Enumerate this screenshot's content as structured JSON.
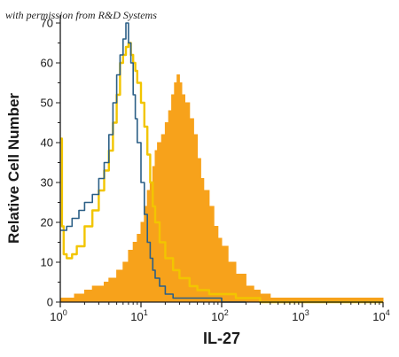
{
  "credit": "with permission from R&D Systems",
  "colors": {
    "filled_series": "#F7A21B",
    "yellow_series": "#F2C500",
    "blue_series": "#2B5F86",
    "axis": "#1a1a1a"
  },
  "chart_data": {
    "type": "area",
    "xlabel": "IL-27",
    "ylabel": "Relative Cell Number",
    "xscale": "log",
    "xlim": [
      1,
      10000
    ],
    "ylim": [
      0,
      72
    ],
    "yticks": [
      0,
      10,
      20,
      30,
      40,
      50,
      60,
      70
    ],
    "xticks": [
      {
        "base": "10",
        "exp": "0",
        "value": 1
      },
      {
        "base": "10",
        "exp": "1",
        "value": 10
      },
      {
        "base": "10",
        "exp": "2",
        "value": 100
      },
      {
        "base": "10",
        "exp": "3",
        "value": 1000
      },
      {
        "base": "10",
        "exp": "4",
        "value": 10000
      }
    ],
    "grid": false,
    "legend": "none",
    "series": [
      {
        "style": "filled",
        "color": "#F7A21B",
        "x": [
          1.0,
          1.2,
          1.5,
          2.0,
          2.5,
          3.0,
          3.5,
          4.0,
          5.0,
          6.0,
          7.0,
          8.0,
          9.0,
          10.0,
          11.0,
          12.0,
          13.0,
          14.0,
          15.0,
          16.0,
          18.0,
          20.0,
          22.0,
          24.0,
          26.0,
          28.0,
          30.0,
          32.0,
          35.0,
          40.0,
          45.0,
          50.0,
          55.0,
          60.0,
          70.0,
          80.0,
          90.0,
          100.0,
          120.0,
          150.0,
          200.0,
          250.0,
          300.0,
          400.0,
          500.0,
          700.0,
          1000.0,
          2000.0,
          5000.0,
          10000.0
        ],
        "y": [
          1,
          1,
          2,
          3,
          4,
          4,
          5,
          6,
          8,
          10,
          13,
          15,
          17,
          20,
          24,
          28,
          30,
          34,
          38,
          40,
          42,
          45,
          48,
          52,
          55,
          57,
          55,
          52,
          50,
          46,
          42,
          36,
          31,
          28,
          24,
          19,
          16,
          14,
          10,
          7,
          4,
          3,
          2,
          1,
          1,
          1,
          1,
          1,
          1,
          1
        ]
      },
      {
        "style": "line",
        "color": "#F2C500",
        "x": [
          1.0,
          1.05,
          1.1,
          1.2,
          1.4,
          1.6,
          2.0,
          2.5,
          3.0,
          3.5,
          4.0,
          4.5,
          5.0,
          5.5,
          6.0,
          6.5,
          7.0,
          7.5,
          8.0,
          8.5,
          9.0,
          10.0,
          11.0,
          12.0,
          13.0,
          14.0,
          15.0,
          17.0,
          20.0,
          25.0,
          30.0,
          40.0,
          50.0,
          70.0,
          100.0,
          150.0,
          200.0,
          300.0,
          500.0,
          1000.0,
          3000.0,
          10000.0
        ],
        "y": [
          41,
          19,
          12,
          11,
          12,
          14,
          19,
          23,
          28,
          33,
          38,
          45,
          52,
          60,
          62,
          64,
          65,
          62,
          60,
          58,
          55,
          50,
          44,
          37,
          30,
          24,
          20,
          15,
          11,
          8,
          6,
          4,
          3,
          2,
          2,
          1,
          1,
          0,
          0,
          0,
          0,
          0
        ]
      },
      {
        "style": "line",
        "color": "#2B5F86",
        "x": [
          1.0,
          1.2,
          1.4,
          1.7,
          2.0,
          2.5,
          3.0,
          3.5,
          4.0,
          4.5,
          5.0,
          5.5,
          6.0,
          6.5,
          7.0,
          7.5,
          8.0,
          8.5,
          9.0,
          10.0,
          11.0,
          12.0,
          13.0,
          14.0,
          15.0,
          17.0,
          20.0,
          25.0,
          30.0,
          40.0,
          60.0,
          100.0,
          200.0
        ],
        "y": [
          18,
          19,
          21,
          23,
          25,
          27,
          31,
          35,
          42,
          50,
          57,
          62,
          66,
          70,
          65,
          60,
          52,
          46,
          40,
          30,
          22,
          15,
          11,
          8,
          6,
          4,
          2,
          1,
          1,
          1,
          1,
          0,
          0
        ]
      }
    ]
  }
}
